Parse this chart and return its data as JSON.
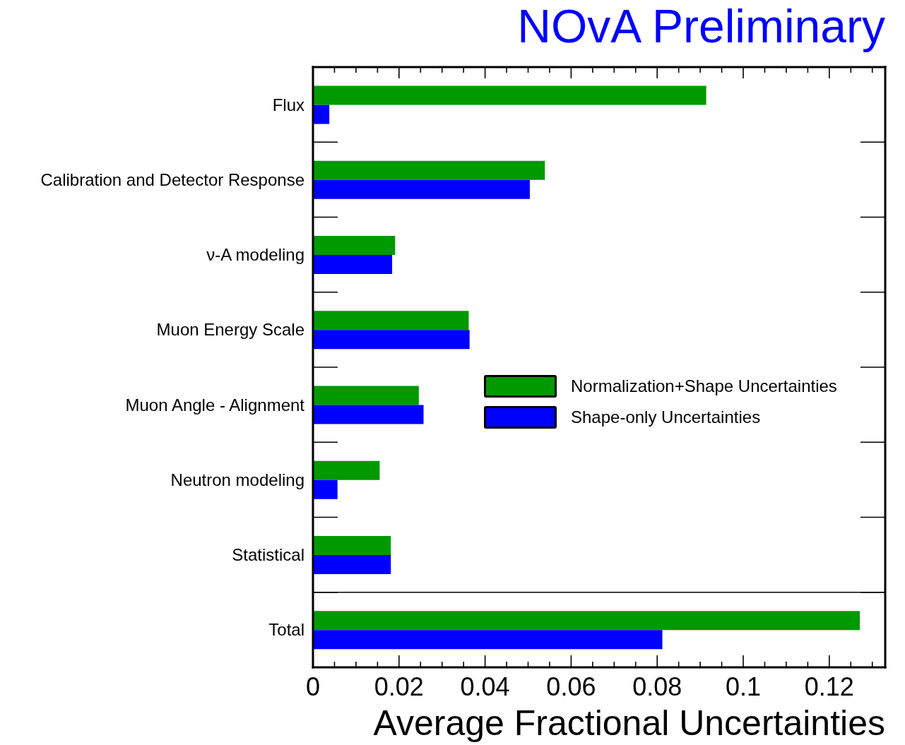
{
  "chart_data": {
    "type": "bar",
    "orientation": "horizontal",
    "title": "NOvA Preliminary",
    "xlabel": "Average Fractional Uncertainties",
    "categories": [
      "Flux",
      "Calibration and Detector Response",
      "ν-A modeling",
      "Muon Energy Scale",
      "Muon Angle - Alignment",
      "Neutron modeling",
      "Statistical",
      "Total"
    ],
    "series": [
      {
        "name": "Normalization+Shape Uncertainties",
        "color": "#009900",
        "values": [
          0.0914,
          0.0539,
          0.0191,
          0.0362,
          0.0246,
          0.0155,
          0.0181,
          0.1271
        ]
      },
      {
        "name": "Shape-only Uncertainties",
        "color": "#0000ff",
        "values": [
          0.0038,
          0.0504,
          0.0184,
          0.0364,
          0.0257,
          0.0057,
          0.0181,
          0.0812
        ]
      }
    ],
    "xlim": [
      0,
      0.133
    ],
    "xticks": [
      0,
      {
        "value": 0.005,
        "label": null
      },
      {
        "value": 0.01,
        "label": null
      },
      {
        "value": 0.015,
        "label": null
      },
      0.02,
      {
        "value": 0.025,
        "label": null
      },
      {
        "value": 0.03,
        "label": null
      },
      {
        "value": 0.035,
        "label": null
      },
      0.04,
      {
        "value": 0.045,
        "label": null
      },
      {
        "value": 0.05,
        "label": null
      },
      {
        "value": 0.055,
        "label": null
      },
      0.06,
      {
        "value": 0.065,
        "label": null
      },
      {
        "value": 0.07,
        "label": null
      },
      {
        "value": 0.075,
        "label": null
      },
      0.08,
      {
        "value": 0.085,
        "label": null
      },
      {
        "value": 0.09,
        "label": null
      },
      {
        "value": 0.095,
        "label": null
      },
      0.1,
      {
        "value": 0.105,
        "label": null
      },
      {
        "value": 0.11,
        "label": null
      },
      {
        "value": 0.115,
        "label": null
      },
      0.12,
      {
        "value": 0.125,
        "label": null
      },
      {
        "value": 0.13,
        "label": null
      }
    ],
    "legend": "right"
  }
}
